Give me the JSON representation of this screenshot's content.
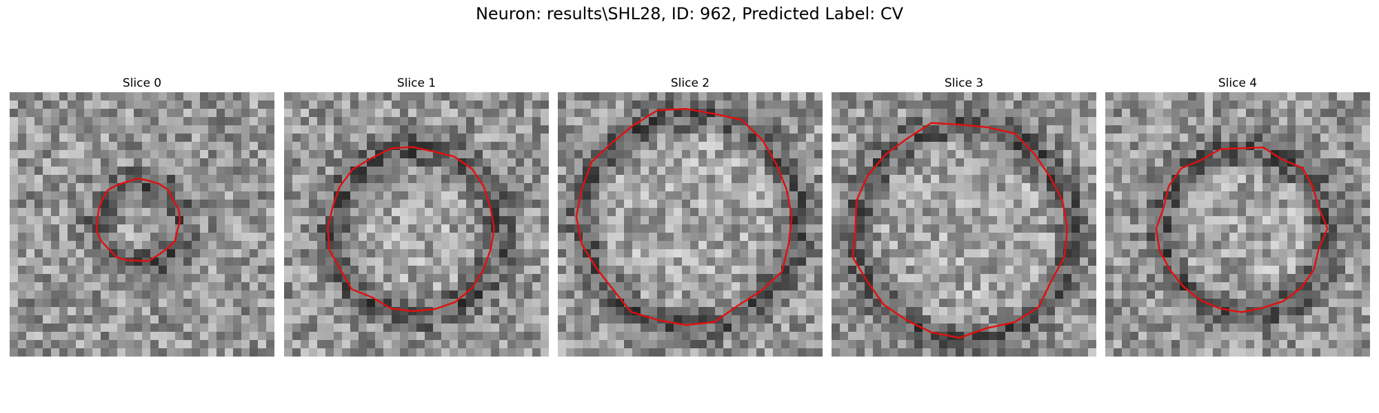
{
  "figure": {
    "title": "Neuron: results\\SHL28, ID: 962, Predicted Label: CV"
  },
  "panels": [
    {
      "title": "Slice 0",
      "contour_color": "#e01010",
      "seed": 11,
      "outline": "small"
    },
    {
      "title": "Slice 1",
      "contour_color": "#e01010",
      "seed": 23,
      "outline": "medium"
    },
    {
      "title": "Slice 2",
      "contour_color": "#e01010",
      "seed": 37,
      "outline": "large"
    },
    {
      "title": "Slice 3",
      "contour_color": "#e01010",
      "seed": 53,
      "outline": "large"
    },
    {
      "title": "Slice 4",
      "contour_color": "#e01010",
      "seed": 71,
      "outline": "medium"
    }
  ]
}
